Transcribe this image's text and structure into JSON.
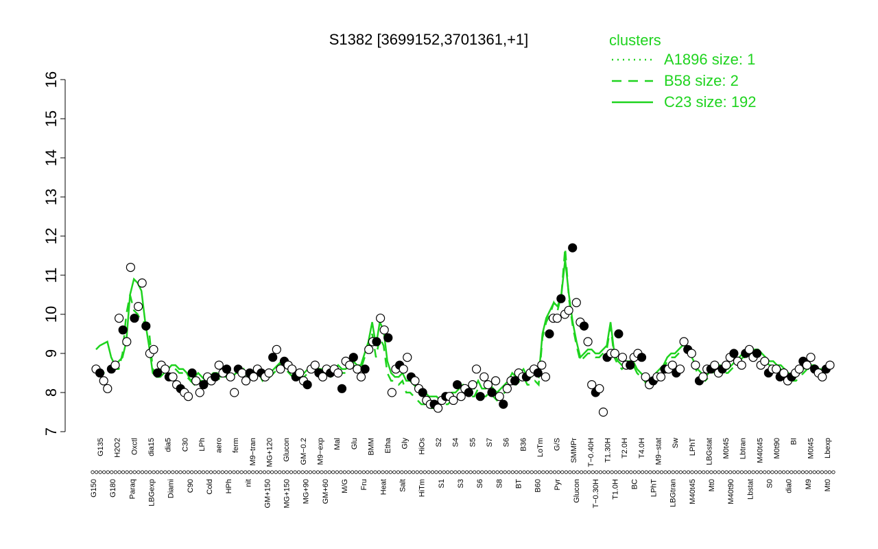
{
  "chart_data": {
    "type": "line",
    "title": "S1382 [3699152,3701361,+1]",
    "xlabel": "",
    "ylabel": "",
    "ylim": [
      7,
      16
    ],
    "yticks": [
      7,
      8,
      9,
      10,
      11,
      12,
      13,
      14,
      15,
      16
    ],
    "x_tick_labels_top_row": [
      "G135",
      "H2O2",
      "Oxctl",
      "dia15",
      "dia5",
      "C30",
      "LPh",
      "aero",
      "ferm",
      "M9−tran",
      "MG+120",
      "Glucon",
      "GM−0.2",
      "M9−exp",
      "Mal",
      "Glu",
      "BMM",
      "Etha",
      "Gly",
      "HiOs",
      "S2",
      "S4",
      "S5",
      "S7",
      "S6",
      "B36",
      "LoTm",
      "G/S",
      "SMMPr",
      "T−0.40H",
      "T1.30H",
      "T2.0H",
      "T4.0H",
      "M9−stat",
      "Sw",
      "LPhT",
      "LBGstat",
      "M0t45",
      "Lbtran",
      "M40t45",
      "M0t90",
      "BI",
      "M0t45",
      "Lbexp"
    ],
    "x_tick_labels_bottom_row": [
      "G150",
      "G180",
      "Paraq",
      "LBGexp",
      "Diami",
      "C90",
      "Cold",
      "HPh",
      "nit",
      "GM+150",
      "MG+150",
      "MG+90",
      "GM+60",
      "M/G",
      "Fru",
      "Heat",
      "Salt",
      "HiTm",
      "S1",
      "S3",
      "S6",
      "S8",
      "BT",
      "B60",
      "Pyr",
      "Glucon",
      "T−0.30H",
      "T1.0H",
      "BC",
      "LPhT",
      "LBGtran",
      "M40t45",
      "Mt0",
      "M40t90",
      "Lbstat",
      "S0",
      "dia0",
      "M9",
      "Mt0"
    ],
    "series": [
      {
        "name": "C23 size: 192",
        "style": "solid",
        "values": [
          9.1,
          9.2,
          9.25,
          9.3,
          8.9,
          8.7,
          8.8,
          8.9,
          9.3,
          10.5,
          10.9,
          10.8,
          10.6,
          9.8,
          9.2,
          8.5,
          8.4,
          8.4,
          8.5,
          8.6,
          8.7,
          8.7,
          8.6,
          8.6,
          8.5,
          8.3,
          8.4,
          8.5,
          8.4,
          8.3,
          8.4,
          8.5,
          8.5,
          8.4,
          8.5,
          8.5,
          8.4,
          8.5,
          8.5,
          8.6,
          8.4,
          8.5,
          8.6,
          8.6,
          8.4,
          8.5,
          8.5,
          8.6,
          8.7,
          8.8,
          8.7,
          8.6,
          8.5,
          8.4,
          8.5,
          8.5,
          8.6,
          8.6,
          8.7,
          8.6,
          8.6,
          8.6,
          8.5,
          8.6,
          8.7,
          8.6,
          8.6,
          8.7,
          8.8,
          8.7,
          8.7,
          9.0,
          9.3,
          9.8,
          9.2,
          9.8,
          9.6,
          8.8,
          8.5,
          8.4,
          8.4,
          8.5,
          8.3,
          8.3,
          8.2,
          8.1,
          8.0,
          8.0,
          7.9,
          7.9,
          7.9,
          7.8,
          7.9,
          7.9,
          8.0,
          8.0,
          8.1,
          8.2,
          8.1,
          8.1,
          8.1,
          8.3,
          8.1,
          8.1,
          8.2,
          8.1,
          8.0,
          8.1,
          8.2,
          8.3,
          8.5,
          8.4,
          8.5,
          8.6,
          8.4,
          8.4,
          8.5,
          8.4,
          9.5,
          9.9,
          10.1,
          10.3,
          10.2,
          10.5,
          11.4,
          10.5,
          9.8,
          9.3,
          8.9,
          9.0,
          9.1,
          9.1,
          9.0,
          9.0,
          9.1,
          9.2,
          9.8,
          9.0,
          8.8,
          8.7,
          8.8,
          8.8,
          8.8,
          8.6,
          8.5,
          8.4,
          8.2,
          8.3,
          8.5,
          8.6,
          8.7,
          8.9,
          9.0,
          9.0,
          9.1,
          9.2,
          9.2,
          9.0,
          8.8,
          8.6,
          8.5,
          8.4,
          8.5,
          8.6,
          8.7,
          8.7,
          8.6,
          8.6,
          8.7,
          8.8,
          8.9,
          9.0,
          9.0,
          9.0,
          9.1,
          9.1,
          9.0,
          8.9,
          8.8,
          8.8,
          8.7,
          8.7,
          8.6,
          8.5,
          8.4,
          8.4,
          8.5,
          8.6,
          8.7,
          8.7,
          8.7,
          8.6,
          8.6,
          8.6,
          8.6
        ]
      },
      {
        "name": "B58 size: 2",
        "style": "dashed",
        "values": [
          8.6,
          8.55,
          8.5,
          8.55,
          8.6,
          8.6,
          8.6,
          9.0,
          10.0,
          10.5,
          10.1,
          10.0,
          9.8,
          9.8,
          9.6,
          8.6,
          8.5,
          8.4,
          8.5,
          8.6,
          8.7,
          8.6,
          8.5,
          8.5,
          8.4,
          8.3,
          8.2,
          8.3,
          8.3,
          8.2,
          8.3,
          8.4,
          8.4,
          8.3,
          8.4,
          8.4,
          8.4,
          8.5,
          8.5,
          8.6,
          8.3,
          8.4,
          8.5,
          8.5,
          8.3,
          8.4,
          8.4,
          8.5,
          8.6,
          8.8,
          8.6,
          8.5,
          8.4,
          8.3,
          8.4,
          8.4,
          8.5,
          8.5,
          8.6,
          8.5,
          8.5,
          8.5,
          8.4,
          8.5,
          8.6,
          8.5,
          8.5,
          8.6,
          8.7,
          8.6,
          8.6,
          8.9,
          9.2,
          9.5,
          8.9,
          9.4,
          9.2,
          8.5,
          8.3,
          8.3,
          8.2,
          8.3,
          8.0,
          8.0,
          7.9,
          7.8,
          7.7,
          7.7,
          7.6,
          7.6,
          7.6,
          7.6,
          7.7,
          7.7,
          7.8,
          7.8,
          7.9,
          8.0,
          7.9,
          7.9,
          7.9,
          8.1,
          7.9,
          7.9,
          8.0,
          7.9,
          7.8,
          7.9,
          8.0,
          8.1,
          8.3,
          8.2,
          8.3,
          8.4,
          8.2,
          8.2,
          8.3,
          8.2,
          9.4,
          9.8,
          10.0,
          10.3,
          10.1,
          10.5,
          11.7,
          10.4,
          9.7,
          9.2,
          8.8,
          8.9,
          9.0,
          9.0,
          8.9,
          8.9,
          9.0,
          9.1,
          9.7,
          8.9,
          8.7,
          8.6,
          8.7,
          8.7,
          8.7,
          8.5,
          8.4,
          8.3,
          8.1,
          8.2,
          8.4,
          8.5,
          8.6,
          8.8,
          8.9,
          8.9,
          9.0,
          9.1,
          9.1,
          8.9,
          8.7,
          8.5,
          8.4,
          8.3,
          8.4,
          8.5,
          8.6,
          8.6,
          8.5,
          8.5,
          8.6,
          8.7,
          8.8,
          8.9,
          8.9,
          8.9,
          9.0,
          9.0,
          8.9,
          8.8,
          8.7,
          8.7,
          8.6,
          8.6,
          8.5,
          8.4,
          8.3,
          8.3,
          8.4,
          8.5,
          8.6,
          8.6,
          8.6,
          8.5,
          8.5,
          8.5,
          8.5
        ]
      },
      {
        "name": "A1896 size: 1",
        "style": "dotted",
        "values": [
          8.6,
          8.5,
          8.3,
          8.1,
          8.6,
          8.7,
          9.9,
          9.6,
          9.3,
          11.2,
          9.9,
          10.2,
          10.8,
          9.7,
          9.0,
          9.1,
          8.5,
          8.7,
          8.6,
          8.4,
          8.4,
          8.2,
          8.1,
          8.0,
          7.9,
          8.5,
          8.3,
          8.0,
          8.2,
          8.4,
          8.3,
          8.4,
          8.7,
          8.5,
          8.6,
          8.4,
          8.0,
          8.6,
          8.5,
          8.3,
          8.5,
          8.4,
          8.6,
          8.5,
          8.4,
          8.5,
          8.9,
          9.1,
          8.6,
          8.8,
          8.7,
          8.6,
          8.4,
          8.5,
          8.3,
          8.2,
          8.6,
          8.7,
          8.5,
          8.4,
          8.6,
          8.5,
          8.6,
          8.5,
          8.1,
          8.8,
          8.7,
          8.9,
          8.6,
          8.4,
          8.6,
          9.1,
          9.3,
          9.3,
          9.9,
          9.6,
          9.4,
          8.0,
          8.6,
          8.7,
          8.6,
          8.9,
          8.4,
          8.3,
          8.1,
          8.0,
          7.8,
          7.7,
          7.7,
          7.6,
          7.8,
          7.9,
          7.9,
          7.8,
          8.2,
          7.9,
          8.1,
          8.0,
          8.2,
          8.6,
          7.9,
          8.4,
          8.2,
          8.0,
          8.3,
          7.9,
          7.7,
          8.1,
          8.3,
          8.3,
          8.5,
          8.4,
          8.4,
          8.5,
          8.6,
          8.5,
          8.7,
          8.4,
          9.5,
          9.9,
          9.9,
          10.4,
          10.0,
          10.1,
          11.7,
          10.3,
          9.8,
          9.7,
          9.3,
          8.2,
          8.0,
          8.1,
          7.5,
          8.9,
          9.0,
          9.0,
          9.5,
          8.9,
          8.7,
          8.7,
          8.9,
          9.0,
          8.9,
          8.4,
          8.2,
          8.3,
          8.4,
          8.4,
          8.6,
          8.6,
          8.7,
          8.5,
          8.6,
          9.3,
          9.1,
          9.0,
          8.7,
          8.3,
          8.4,
          8.6,
          8.6,
          8.7,
          8.5,
          8.6,
          8.7,
          8.9,
          9.0,
          8.8,
          8.7,
          9.0,
          9.1,
          8.9,
          9.0,
          8.7,
          8.8,
          8.5,
          8.6,
          8.6,
          8.4,
          8.5,
          8.3,
          8.4,
          8.5,
          8.6,
          8.8,
          8.7,
          8.9,
          8.6,
          8.5,
          8.4,
          8.6,
          8.7
        ]
      }
    ],
    "legend": {
      "title": "clusters",
      "placement": "top-right",
      "entries": [
        {
          "label": "A1896 size: 1",
          "style": "dotted"
        },
        {
          "label": "B58 size: 2",
          "style": "dashed"
        },
        {
          "label": "C23 size: 192",
          "style": "solid"
        }
      ]
    },
    "grid": false,
    "colors": {
      "lines": "#1ed31e",
      "points_fill": [
        "#ffffff",
        "#000000"
      ],
      "points_stroke": "#000000"
    }
  }
}
